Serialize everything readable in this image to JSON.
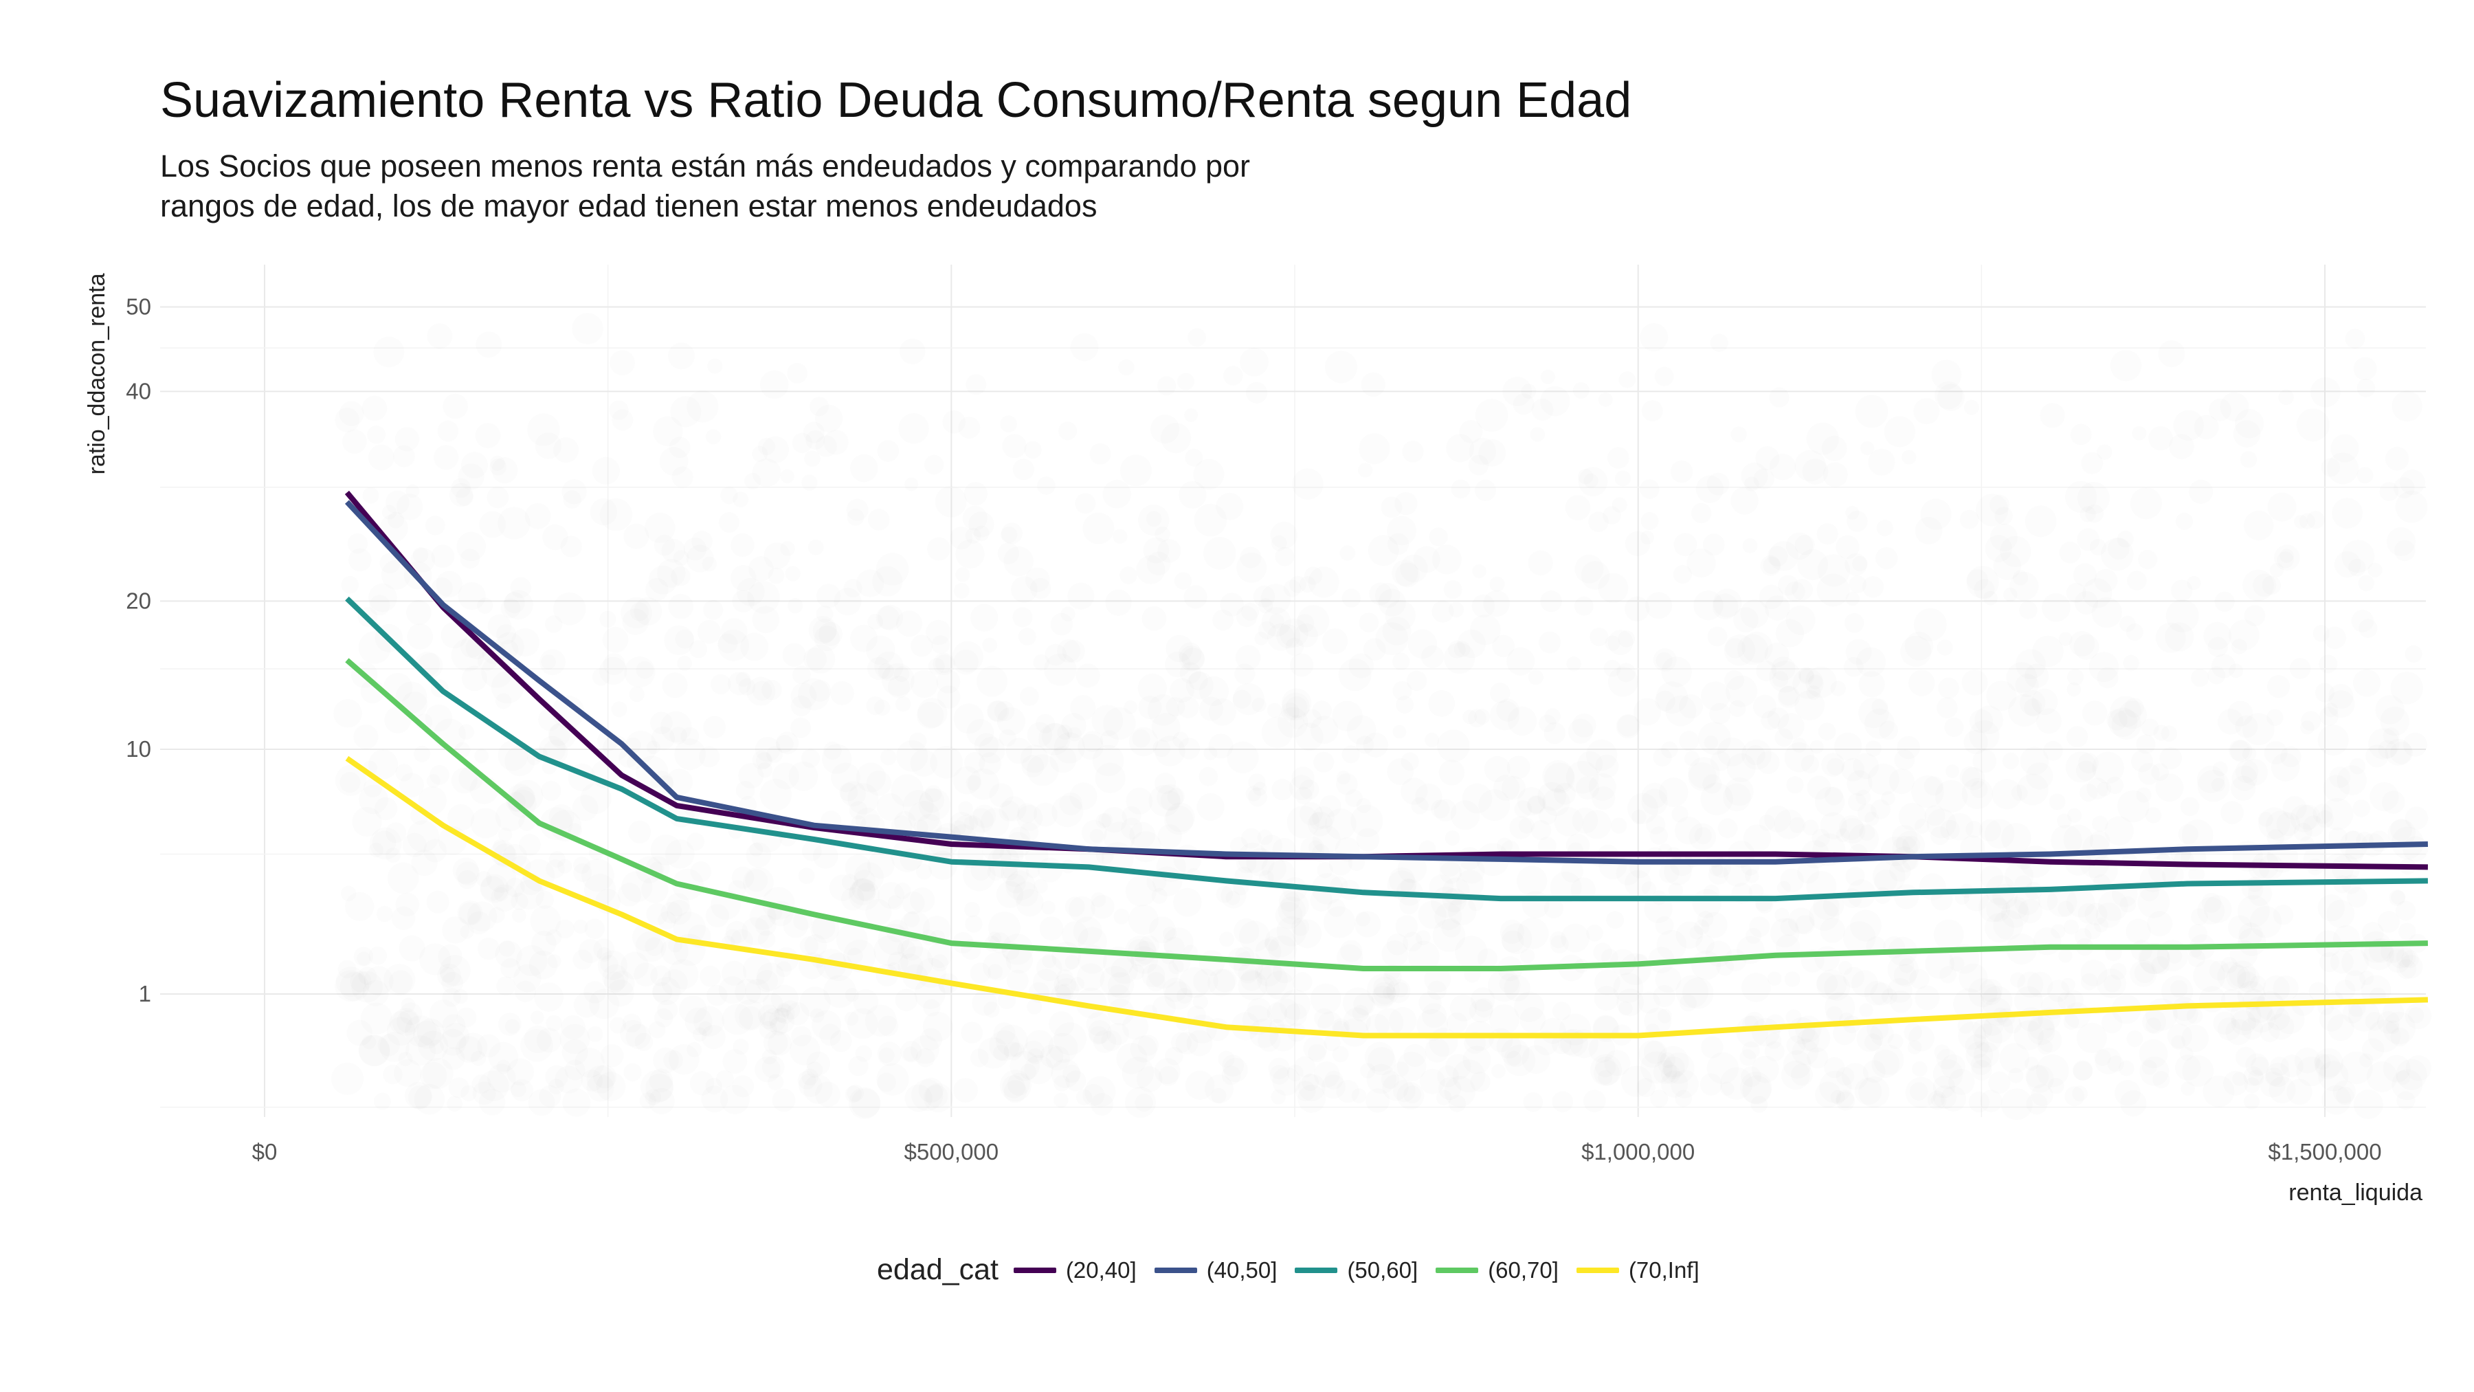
{
  "chart_data": {
    "type": "line",
    "title": "Suavizamiento Renta vs Ratio Deuda Consumo/Renta segun Edad",
    "subtitle_lines": [
      "Los Socios que poseen menos renta están más endeudados y comparando por",
      "rangos de edad, los de mayor edad tienen estar menos endeudados"
    ],
    "xlabel": "renta_liquida",
    "ylabel": "ratio_ddacon_renta",
    "x_ticks": [
      {
        "value": 0,
        "label": "$0"
      },
      {
        "value": 500000,
        "label": "$500,000"
      },
      {
        "value": 1000000,
        "label": "$1,000,000"
      },
      {
        "value": 1500000,
        "label": "$1,500,000"
      }
    ],
    "y_ticks": [
      {
        "value": 1,
        "label": "1"
      },
      {
        "value": 10,
        "label": "10"
      },
      {
        "value": 20,
        "label": "20"
      },
      {
        "value": 40,
        "label": "40"
      },
      {
        "value": 50,
        "label": "50"
      }
    ],
    "xlim": [
      -75000,
      1575000
    ],
    "ylim": [
      -0.5,
      55
    ],
    "y_scale": "sqrt",
    "grid": true,
    "legend_position": "bottom",
    "legend_title": "edad_cat",
    "scatter_background": true,
    "x": [
      60000,
      130000,
      200000,
      260000,
      300000,
      400000,
      500000,
      600000,
      700000,
      800000,
      900000,
      1000000,
      1100000,
      1200000,
      1300000,
      1400000,
      1575000
    ],
    "series": [
      {
        "name": "(20,40]",
        "color": "#440154",
        "values": [
          29.5,
          19.5,
          13.0,
          8.6,
          7.1,
          6.1,
          5.4,
          5.2,
          4.9,
          4.9,
          5.0,
          5.0,
          5.0,
          4.9,
          4.7,
          4.6,
          4.5
        ]
      },
      {
        "name": "(40,50]",
        "color": "#3b528b",
        "values": [
          28.6,
          19.7,
          14.2,
          10.3,
          7.5,
          6.2,
          5.7,
          5.2,
          5.0,
          4.9,
          4.8,
          4.7,
          4.7,
          4.9,
          5.0,
          5.2,
          5.4
        ]
      },
      {
        "name": "(50,60]",
        "color": "#21918c",
        "values": [
          20.2,
          13.5,
          9.6,
          7.9,
          6.5,
          5.6,
          4.7,
          4.5,
          4.0,
          3.6,
          3.4,
          3.4,
          3.4,
          3.6,
          3.7,
          3.9,
          4.0
        ]
      },
      {
        "name": "(60,70]",
        "color": "#5ec962",
        "values": [
          15.6,
          10.3,
          6.3,
          4.8,
          3.9,
          2.9,
          2.1,
          1.9,
          1.7,
          1.5,
          1.5,
          1.6,
          1.8,
          1.9,
          2.0,
          2.0,
          2.1
        ]
      },
      {
        "name": "(70,Inf]",
        "color": "#fde725",
        "values": [
          9.5,
          6.2,
          4.0,
          2.9,
          2.2,
          1.7,
          1.2,
          0.8,
          0.5,
          0.4,
          0.4,
          0.4,
          0.5,
          0.6,
          0.7,
          0.8,
          0.9
        ]
      }
    ]
  }
}
